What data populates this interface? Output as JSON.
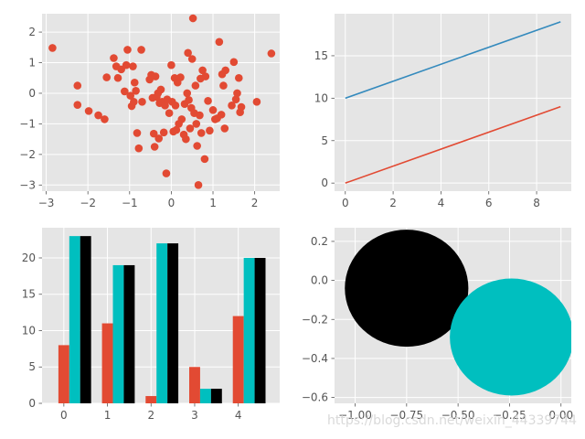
{
  "style": {
    "axes_bg": "#e5e5e5",
    "grid_color": "#ffffff",
    "tick_color": "#555555",
    "red": "#e24a33",
    "blue": "#348abd",
    "cyan": "#00bfbf",
    "black": "#000000"
  },
  "watermark": "https://blog.csdn.net/weixin_44339744",
  "chart_data": [
    {
      "type": "scatter",
      "xlim": [
        -3.1,
        2.6
      ],
      "ylim": [
        -3.2,
        2.6
      ],
      "xticks": [
        -3,
        -2,
        -1,
        0,
        1,
        2
      ],
      "yticks": [
        -3,
        -2,
        -1,
        0,
        1,
        2
      ],
      "xtick_labels": [
        "−3",
        "−2",
        "−1",
        "0",
        "1",
        "2"
      ],
      "ytick_labels": [
        "−3",
        "−2",
        "−1",
        "0",
        "1",
        "2"
      ],
      "grid": true,
      "color": "#e24a33",
      "points": [
        [
          -2.85,
          1.48
        ],
        [
          -2.25,
          0.25
        ],
        [
          -2.25,
          -0.38
        ],
        [
          -1.98,
          -0.58
        ],
        [
          -1.75,
          -0.72
        ],
        [
          -1.6,
          -0.85
        ],
        [
          -1.55,
          0.52
        ],
        [
          -1.38,
          1.15
        ],
        [
          -1.32,
          0.88
        ],
        [
          -1.28,
          0.5
        ],
        [
          -1.2,
          0.78
        ],
        [
          -1.12,
          0.06
        ],
        [
          -1.08,
          0.92
        ],
        [
          -1.05,
          1.42
        ],
        [
          -0.98,
          -0.08
        ],
        [
          -0.95,
          -0.42
        ],
        [
          -0.92,
          0.88
        ],
        [
          -0.9,
          -0.28
        ],
        [
          -0.88,
          0.35
        ],
        [
          -0.85,
          0.08
        ],
        [
          -0.82,
          -1.3
        ],
        [
          -0.78,
          -1.8
        ],
        [
          -0.72,
          1.42
        ],
        [
          -0.7,
          -0.28
        ],
        [
          -0.52,
          0.45
        ],
        [
          -0.48,
          0.6
        ],
        [
          -0.45,
          -0.15
        ],
        [
          -0.42,
          -1.32
        ],
        [
          -0.4,
          -1.75
        ],
        [
          -0.38,
          0.55
        ],
        [
          -0.35,
          -0.12
        ],
        [
          -0.32,
          0.0
        ],
        [
          -0.3,
          -1.48
        ],
        [
          -0.28,
          -0.32
        ],
        [
          -0.25,
          0.12
        ],
        [
          -0.22,
          -0.28
        ],
        [
          -0.18,
          -1.28
        ],
        [
          -0.15,
          -0.4
        ],
        [
          -0.12,
          -2.62
        ],
        [
          -0.1,
          -0.2
        ],
        [
          -0.05,
          -0.65
        ],
        [
          0.0,
          0.92
        ],
        [
          0.02,
          -0.28
        ],
        [
          0.05,
          -1.25
        ],
        [
          0.08,
          0.5
        ],
        [
          0.1,
          -0.4
        ],
        [
          0.12,
          -1.2
        ],
        [
          0.15,
          0.35
        ],
        [
          0.18,
          -1.0
        ],
        [
          0.22,
          0.52
        ],
        [
          0.25,
          -0.85
        ],
        [
          0.3,
          -1.35
        ],
        [
          0.32,
          -0.35
        ],
        [
          0.35,
          -1.5
        ],
        [
          0.38,
          0.0
        ],
        [
          0.4,
          1.32
        ],
        [
          0.42,
          -0.22
        ],
        [
          0.45,
          -1.15
        ],
        [
          0.48,
          -0.48
        ],
        [
          0.5,
          1.12
        ],
        [
          0.52,
          2.45
        ],
        [
          0.55,
          -0.65
        ],
        [
          0.58,
          0.25
        ],
        [
          0.6,
          -1.0
        ],
        [
          0.62,
          -1.72
        ],
        [
          0.65,
          -3.0
        ],
        [
          0.68,
          -0.72
        ],
        [
          0.7,
          0.48
        ],
        [
          0.72,
          -1.3
        ],
        [
          0.75,
          0.75
        ],
        [
          0.8,
          -2.15
        ],
        [
          0.82,
          0.55
        ],
        [
          0.88,
          -0.25
        ],
        [
          0.92,
          -1.22
        ],
        [
          1.0,
          -0.55
        ],
        [
          1.05,
          -0.85
        ],
        [
          1.1,
          -0.82
        ],
        [
          1.15,
          1.68
        ],
        [
          1.2,
          -0.7
        ],
        [
          1.22,
          0.62
        ],
        [
          1.25,
          0.25
        ],
        [
          1.28,
          -1.15
        ],
        [
          1.3,
          0.75
        ],
        [
          1.45,
          -0.4
        ],
        [
          1.5,
          1.02
        ],
        [
          1.55,
          -0.2
        ],
        [
          1.58,
          0.0
        ],
        [
          1.62,
          0.5
        ],
        [
          1.65,
          -0.62
        ],
        [
          1.68,
          -0.45
        ],
        [
          2.05,
          -0.28
        ],
        [
          2.4,
          1.3
        ]
      ]
    },
    {
      "type": "line",
      "xlim": [
        -0.45,
        9.45
      ],
      "ylim": [
        -0.95,
        19.95
      ],
      "xticks": [
        0,
        2,
        4,
        6,
        8
      ],
      "yticks": [
        0,
        5,
        10,
        15
      ],
      "grid": true,
      "series": [
        {
          "x": [
            0,
            9
          ],
          "y": [
            10,
            19
          ],
          "color": "#348abd"
        },
        {
          "x": [
            0,
            9
          ],
          "y": [
            0,
            9
          ],
          "color": "#e24a33"
        }
      ]
    },
    {
      "type": "bar",
      "xlim": [
        -0.5,
        4.95
      ],
      "ylim": [
        0,
        24.15
      ],
      "xticks": [
        0,
        1,
        2,
        3,
        4
      ],
      "yticks": [
        0,
        5,
        10,
        15,
        20
      ],
      "grid": true,
      "bar_width": 0.25,
      "categories": [
        "0",
        "1",
        "2",
        "3",
        "4"
      ],
      "series": [
        {
          "values": [
            8,
            11,
            1,
            5,
            12
          ],
          "color": "#e24a33",
          "offset": 0.0
        },
        {
          "values": [
            23,
            19,
            22,
            2,
            20
          ],
          "color": "#00bfbf",
          "offset": 0.25
        },
        {
          "values": [
            23,
            19,
            22,
            2,
            20
          ],
          "color": "#000000",
          "offset": 0.5
        }
      ]
    },
    {
      "type": "circles",
      "xlim": [
        -1.1,
        0.05
      ],
      "ylim": [
        -0.63,
        0.27
      ],
      "xticks": [
        -1.0,
        -0.75,
        -0.5,
        -0.25,
        0.0
      ],
      "yticks": [
        -0.6,
        -0.4,
        -0.2,
        0.0,
        0.2
      ],
      "xtick_labels": [
        "−1.00",
        "−0.75",
        "−0.50",
        "−0.25",
        "0.00"
      ],
      "ytick_labels": [
        "−0.6",
        "−0.4",
        "−0.2",
        "0.0",
        "0.2"
      ],
      "grid": true,
      "circles": [
        {
          "cx": -0.75,
          "cy": -0.04,
          "r": 0.3,
          "color": "#000000"
        },
        {
          "cx": -0.24,
          "cy": -0.29,
          "r": 0.3,
          "color": "#00bfbf"
        }
      ]
    }
  ]
}
